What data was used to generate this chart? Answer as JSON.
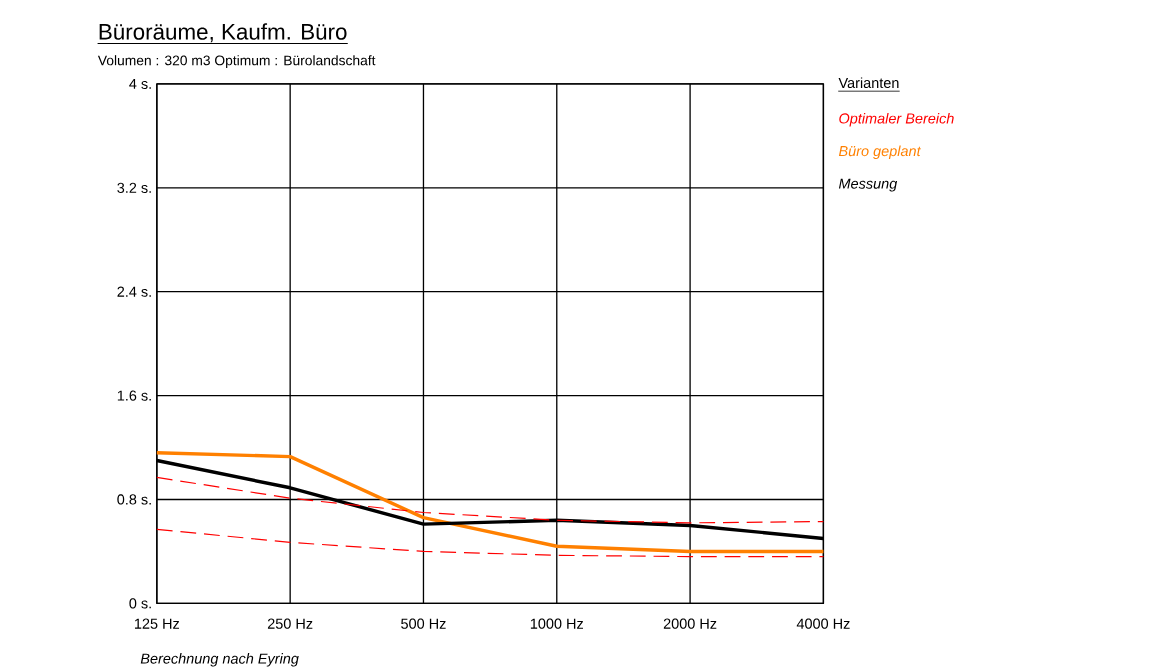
{
  "chart_data": {
    "type": "line",
    "title": "Büroräume, Kaufm. Büro",
    "subtitle": "Volumen :  320 m3    Optimum : Bürolandschaft",
    "legend_title": "Varianten",
    "categories": [
      "125 Hz",
      "250 Hz",
      "500 Hz",
      "1000 Hz",
      "2000 Hz",
      "4000 Hz"
    ],
    "series": [
      {
        "name": "Optimaler Bereich",
        "color": "#ff0000",
        "line_style": "dashed",
        "values": [
          0.97,
          0.81,
          0.7,
          0.64,
          0.62,
          0.63
        ]
      },
      {
        "color": "#ff0000",
        "line_style": "dashed",
        "values": [
          0.57,
          0.47,
          0.4,
          0.37,
          0.36,
          0.36
        ]
      },
      {
        "name": "Büro geplant",
        "color": "#ff8000",
        "line_style": "solid",
        "values": [
          1.16,
          1.13,
          0.66,
          0.44,
          0.4,
          0.4
        ]
      },
      {
        "name": "Messung",
        "color": "#000000",
        "line_style": "solid",
        "values": [
          1.1,
          0.89,
          0.61,
          0.64,
          0.6,
          0.5
        ]
      }
    ],
    "ylim": [
      0,
      4
    ],
    "yticks": [
      {
        "value": 0,
        "label": "0 s."
      },
      {
        "value": 0.8,
        "label": "0.8 s."
      },
      {
        "value": 1.6,
        "label": "1.6 s."
      },
      {
        "value": 2.4,
        "label": "2.4 s."
      },
      {
        "value": 3.2,
        "label": "3.2 s."
      },
      {
        "value": 4,
        "label": "4 s."
      }
    ],
    "grid": true,
    "legend": "right",
    "marker": "none",
    "annotations": [
      "Berechnung nach Eyring"
    ]
  }
}
